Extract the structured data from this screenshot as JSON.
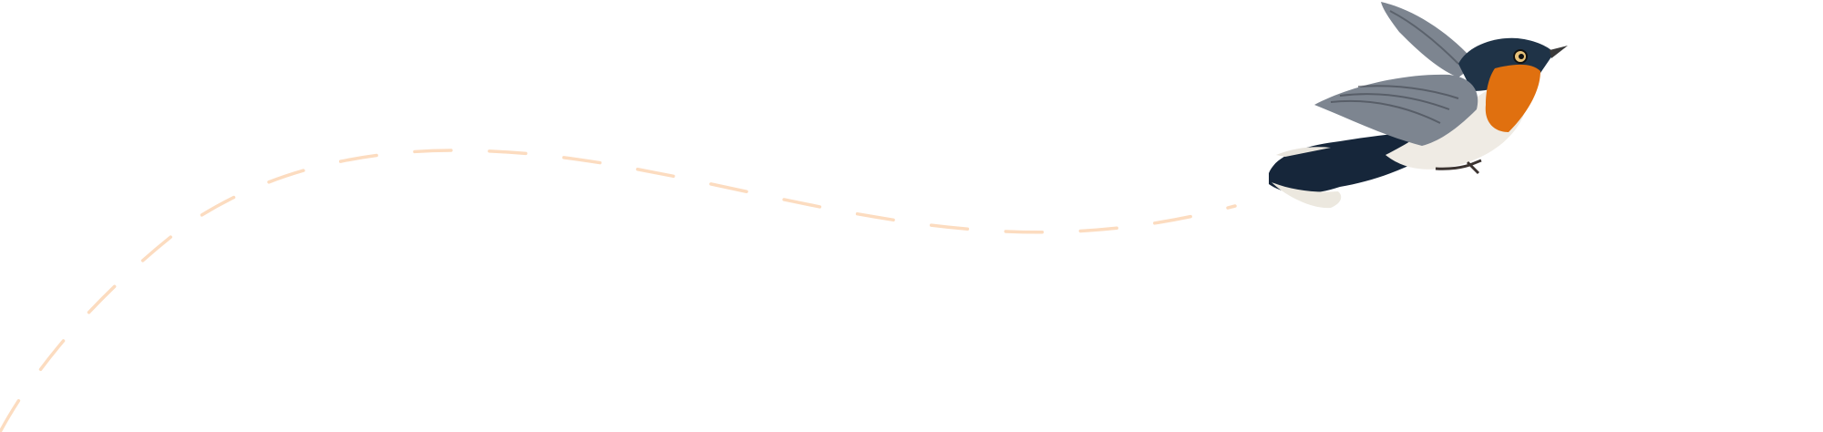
{
  "illustration": {
    "subject": "bird-in-flight",
    "icon": "bird-icon",
    "flight_path_style": "dashed",
    "colors": {
      "flight_path": "#fcdcc0",
      "throat": "#e0700f",
      "head": "#1f3347",
      "wing": "#7d8590",
      "belly": "#efebe4",
      "tail": "#16263a"
    }
  }
}
